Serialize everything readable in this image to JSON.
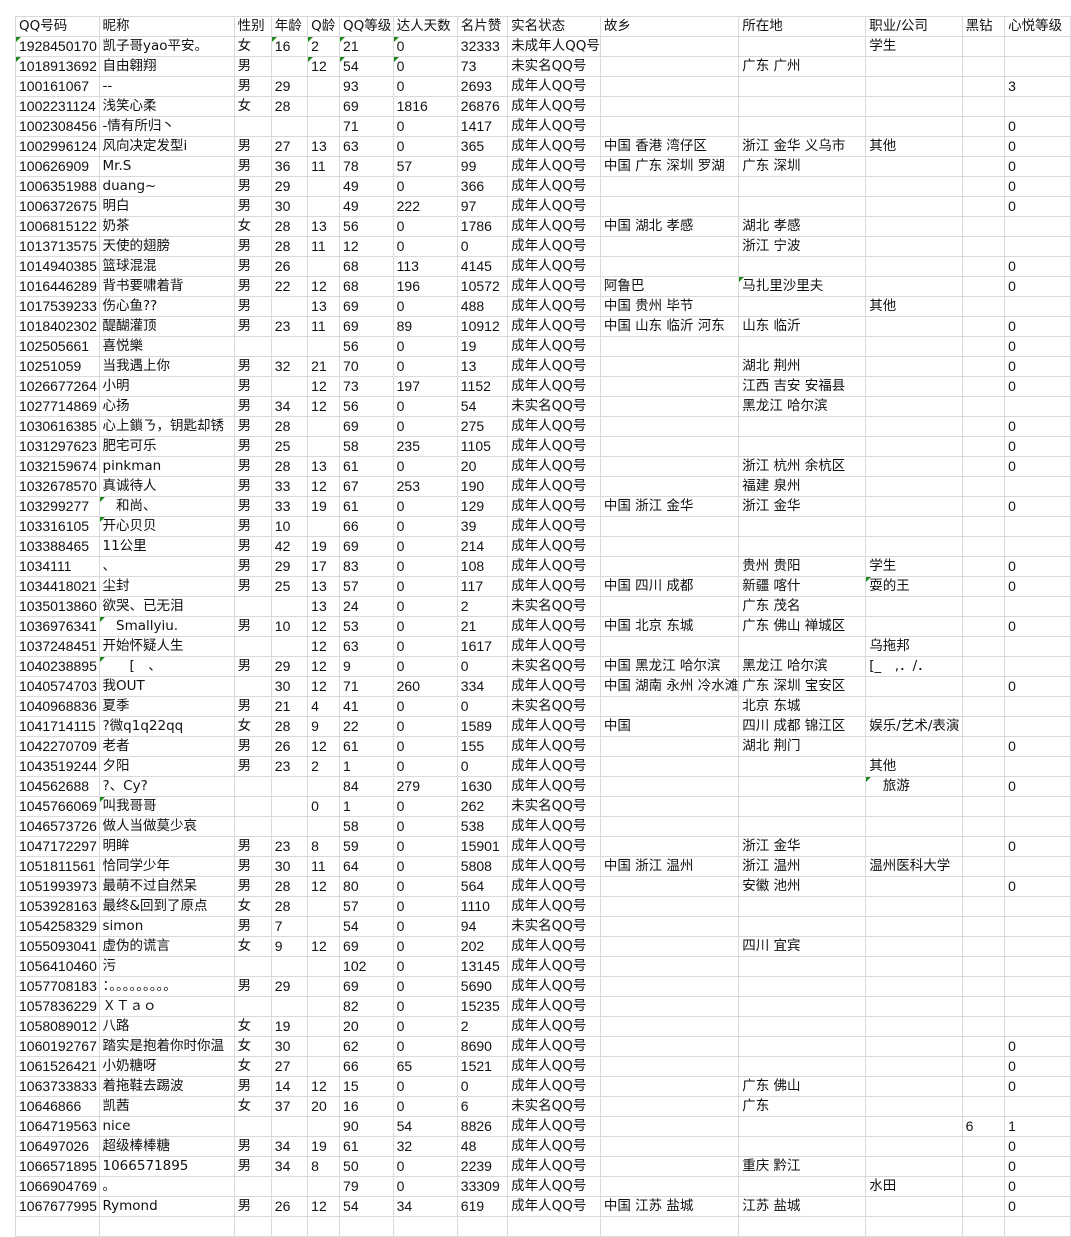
{
  "headers": [
    "QQ号码",
    "昵称",
    "性别",
    "年龄",
    "Q龄",
    "QQ等级",
    "达人天数",
    "名片赞",
    "实名状态",
    "故乡",
    "所在地",
    "职业/公司",
    "黑钻",
    "心悦等级"
  ],
  "rows": [
    [
      "1928450170",
      "凯子哥yao平安。",
      "女",
      "16",
      "2",
      "21",
      "0",
      "32333",
      "未成年人QQ号",
      "",
      "",
      "学生",
      "",
      ""
    ],
    [
      "1018913692",
      "自由翱翔",
      "男",
      "",
      "12",
      "54",
      "0",
      "73",
      "未实名QQ号",
      "",
      "广东 广州",
      "",
      "",
      ""
    ],
    [
      "100161067",
      "--",
      "男",
      "29",
      "",
      "93",
      "0",
      "2693",
      "成年人QQ号",
      "",
      "",
      "",
      "",
      "3"
    ],
    [
      "1002231124",
      "浅笑心柔",
      "女",
      "28",
      "",
      "69",
      "1816",
      "26876",
      "成年人QQ号",
      "",
      "",
      "",
      "",
      ""
    ],
    [
      "1002308456",
      "-情有所归丶",
      "",
      "",
      "",
      "71",
      "0",
      "1417",
      "成年人QQ号",
      "",
      "",
      "",
      "",
      "0"
    ],
    [
      "1002996124",
      "风向决定发型i",
      "男",
      "27",
      "13",
      "63",
      "0",
      "365",
      "成年人QQ号",
      "中国 香港 湾仔区",
      "浙江 金华 义乌市",
      "其他",
      "",
      "0"
    ],
    [
      "100626909",
      "Mr.S",
      "男",
      "36",
      "11",
      "78",
      "57",
      "99",
      "成年人QQ号",
      "中国 广东 深圳 罗湖",
      "广东 深圳",
      "",
      "",
      "0"
    ],
    [
      "1006351988",
      "duang~",
      "男",
      "29",
      "",
      "49",
      "0",
      "366",
      "成年人QQ号",
      "",
      "",
      "",
      "",
      "0"
    ],
    [
      "1006372675",
      "明白",
      "男",
      "30",
      "",
      "49",
      "222",
      "97",
      "成年人QQ号",
      "",
      "",
      "",
      "",
      "0"
    ],
    [
      "1006815122",
      "奶茶",
      "女",
      "28",
      "13",
      "56",
      "0",
      "1786",
      "成年人QQ号",
      "中国 湖北 孝感",
      "湖北 孝感",
      "",
      "",
      ""
    ],
    [
      "1013713575",
      "天使的翅膀",
      "男",
      "28",
      "11",
      "12",
      "0",
      "0",
      "成年人QQ号",
      "",
      "浙江 宁波",
      "",
      "",
      ""
    ],
    [
      "1014940385",
      "篮球混混",
      "男",
      "26",
      "",
      "68",
      "113",
      "4145",
      "成年人QQ号",
      "",
      "",
      "",
      "",
      "0"
    ],
    [
      "1016446289",
      "背书要啸着背",
      "男",
      "22",
      "12",
      "68",
      "196",
      "10572",
      "成年人QQ号",
      "阿鲁巴",
      "马扎里沙里夫",
      "",
      "",
      "0"
    ],
    [
      "1017539233",
      "伤心鱼??",
      "男",
      "",
      "13",
      "69",
      "0",
      "488",
      "成年人QQ号",
      "中国 贵州 毕节",
      "",
      "其他",
      "",
      ""
    ],
    [
      "1018402302",
      "醍醐灌顶",
      "男",
      "23",
      "11",
      "69",
      "89",
      "10912",
      "成年人QQ号",
      "中国 山东 临沂 河东",
      "山东 临沂",
      "",
      "",
      "0"
    ],
    [
      "102505661",
      "喜悦樂",
      "",
      "",
      "",
      "56",
      "0",
      "19",
      "成年人QQ号",
      "",
      "",
      "",
      "",
      "0"
    ],
    [
      "10251059",
      "当我遇上你",
      "男",
      "32",
      "21",
      "70",
      "0",
      "13",
      "成年人QQ号",
      "",
      "湖北 荆州",
      "",
      "",
      "0"
    ],
    [
      "1026677264",
      "小明",
      "男",
      "",
      "12",
      "73",
      "197",
      "1152",
      "成年人QQ号",
      "",
      "江西 吉安 安福县",
      "",
      "",
      "0"
    ],
    [
      "1027714869",
      "心扬",
      "男",
      "34",
      "12",
      "56",
      "0",
      "54",
      "未实名QQ号",
      "",
      "黑龙江 哈尔滨",
      "",
      "",
      ""
    ],
    [
      "1030616385",
      "心上鎖ㄋ，钥匙却锈",
      "男",
      "28",
      "",
      "69",
      "0",
      "275",
      "成年人QQ号",
      "",
      "",
      "",
      "",
      "0"
    ],
    [
      "1031297623",
      "肥宅可乐",
      "男",
      "25",
      "",
      "58",
      "235",
      "1105",
      "成年人QQ号",
      "",
      "",
      "",
      "",
      "0"
    ],
    [
      "1032159674",
      "pinkman",
      "男",
      "28",
      "13",
      "61",
      "0",
      "20",
      "成年人QQ号",
      "",
      "浙江 杭州 余杭区",
      "",
      "",
      "0"
    ],
    [
      "1032678570",
      "真诚待人",
      "男",
      "33",
      "12",
      "67",
      "253",
      "190",
      "成年人QQ号",
      "",
      "福建 泉州",
      "",
      "",
      ""
    ],
    [
      "103299277",
      "　和尚、",
      "男",
      "33",
      "19",
      "61",
      "0",
      "129",
      "成年人QQ号",
      "中国 浙江 金华",
      "浙江 金华",
      "",
      "",
      "0"
    ],
    [
      "103316105",
      "开心贝贝",
      "男",
      "10",
      "",
      "66",
      "0",
      "39",
      "成年人QQ号",
      "",
      "",
      "",
      "",
      ""
    ],
    [
      "103388465",
      "11公里",
      "男",
      "42",
      "19",
      "69",
      "0",
      "214",
      "成年人QQ号",
      "",
      "",
      "",
      "",
      ""
    ],
    [
      "1034111",
      "、",
      "男",
      "29",
      "17",
      "83",
      "0",
      "108",
      "成年人QQ号",
      "",
      "贵州 贵阳",
      "学生",
      "",
      "0"
    ],
    [
      "1034418021",
      "尘封",
      "男",
      "25",
      "13",
      "57",
      "0",
      "117",
      "成年人QQ号",
      "中国 四川 成都",
      "新疆 喀什",
      "耍的王",
      "",
      "0"
    ],
    [
      "1035013860",
      "欲哭、已无泪",
      "",
      "",
      "13",
      "24",
      "0",
      "2",
      "未实名QQ号",
      "",
      "广东 茂名",
      "",
      "",
      ""
    ],
    [
      "1036976341",
      "　Smallyiu.",
      "男",
      "10",
      "12",
      "53",
      "0",
      "21",
      "成年人QQ号",
      "中国 北京 东城",
      "广东 佛山 禅城区",
      "",
      "",
      "0"
    ],
    [
      "1037248451",
      "开始怀疑人生",
      "",
      "",
      "12",
      "63",
      "0",
      "1617",
      "成年人QQ号",
      "",
      "",
      "乌拖邦",
      "",
      ""
    ],
    [
      "1040238895",
      "　　[　、",
      "男",
      "29",
      "12",
      "9",
      "0",
      "0",
      "未实名QQ号",
      "中国 黑龙江 哈尔滨",
      "黑龙江 哈尔滨",
      "[_　,．/．",
      "",
      ""
    ],
    [
      "1040574703",
      "我OUT",
      "",
      "30",
      "12",
      "71",
      "260",
      "334",
      "成年人QQ号",
      "中国 湖南 永州 冷水滩",
      "广东 深圳 宝安区",
      "",
      "",
      "0"
    ],
    [
      "1040968836",
      "夏季",
      "男",
      "21",
      "4",
      "41",
      "0",
      "0",
      "未实名QQ号",
      "",
      "北京 东城",
      "",
      "",
      ""
    ],
    [
      "1041714115",
      "?微q1q22qq",
      "女",
      "28",
      "9",
      "22",
      "0",
      "1589",
      "成年人QQ号",
      "中国",
      "四川 成都 锦江区",
      "娱乐/艺术/表演",
      "",
      ""
    ],
    [
      "1042270709",
      "老者",
      "男",
      "26",
      "12",
      "61",
      "0",
      "155",
      "成年人QQ号",
      "",
      "湖北 荆门",
      "",
      "",
      "0"
    ],
    [
      "1043519244",
      "夕阳",
      "男",
      "23",
      "2",
      "1",
      "0",
      "0",
      "成年人QQ号",
      "",
      "",
      "其他",
      "",
      ""
    ],
    [
      "104562688",
      "?、Cy?",
      "",
      "",
      "",
      "84",
      "279",
      "1630",
      "成年人QQ号",
      "",
      "",
      "　旅游",
      "",
      "0"
    ],
    [
      "1045766069",
      "叫我哥哥",
      "",
      "",
      "0",
      "1",
      "0",
      "262",
      "未实名QQ号",
      "",
      "",
      "",
      "",
      ""
    ],
    [
      "1046573726",
      "做人当做莫少哀",
      "",
      "",
      "",
      "58",
      "0",
      "538",
      "成年人QQ号",
      "",
      "",
      "",
      "",
      ""
    ],
    [
      "1047172297",
      "明眸",
      "男",
      "23",
      "8",
      "59",
      "0",
      "15901",
      "成年人QQ号",
      "",
      "浙江 金华",
      "",
      "",
      "0"
    ],
    [
      "1051811561",
      "恰同学少年",
      "男",
      "30",
      "11",
      "64",
      "0",
      "5808",
      "成年人QQ号",
      "中国 浙江 温州",
      "浙江 温州",
      "温州医科大学",
      "",
      ""
    ],
    [
      "1051993973",
      "最萌不过自然呆",
      "男",
      "28",
      "12",
      "80",
      "0",
      "564",
      "成年人QQ号",
      "",
      "安徽 池州",
      "",
      "",
      "0"
    ],
    [
      "1053928163",
      "最终&回到了原点",
      "女",
      "28",
      "",
      "57",
      "0",
      "1110",
      "成年人QQ号",
      "",
      "",
      "",
      "",
      ""
    ],
    [
      "1054258329",
      "simon",
      "男",
      "7",
      "",
      "54",
      "0",
      "94",
      "未实名QQ号",
      "",
      "",
      "",
      "",
      ""
    ],
    [
      "1055093041",
      "虚伪的谎言",
      "女",
      "9",
      "12",
      "69",
      "0",
      "202",
      "成年人QQ号",
      "",
      "四川 宜宾",
      "",
      "",
      ""
    ],
    [
      "1056410460",
      "污",
      "",
      "",
      "",
      "102",
      "0",
      "13145",
      "成年人QQ号",
      "",
      "",
      "",
      "",
      ""
    ],
    [
      "1057708183",
      "：。。。。。。。。。",
      "男",
      "29",
      "",
      "69",
      "0",
      "5690",
      "成年人QQ号",
      "",
      "",
      "",
      "",
      ""
    ],
    [
      "1057836229",
      "ＸＴａｏ",
      "",
      "",
      "",
      "82",
      "0",
      "15235",
      "成年人QQ号",
      "",
      "",
      "",
      "",
      ""
    ],
    [
      "1058089012",
      "八路",
      "女",
      "19",
      "",
      "20",
      "0",
      "2",
      "成年人QQ号",
      "",
      "",
      "",
      "",
      ""
    ],
    [
      "1060192767",
      "踏实是抱着你时你温",
      "女",
      "30",
      "",
      "62",
      "0",
      "8690",
      "成年人QQ号",
      "",
      "",
      "",
      "",
      "0"
    ],
    [
      "1061526421",
      "小奶糖呀",
      "女",
      "27",
      "",
      "66",
      "65",
      "1521",
      "成年人QQ号",
      "",
      "",
      "",
      "",
      "0"
    ],
    [
      "1063733833",
      "着拖鞋去踢波",
      "男",
      "14",
      "12",
      "15",
      "0",
      "0",
      "成年人QQ号",
      "",
      "广东 佛山",
      "",
      "",
      "0"
    ],
    [
      "10646866",
      "凯茜",
      "女",
      "37",
      "20",
      "16",
      "0",
      "6",
      "未实名QQ号",
      "",
      "广东",
      "",
      "",
      ""
    ],
    [
      "1064719563",
      "nice",
      "",
      "",
      "",
      "90",
      "54",
      "8826",
      "成年人QQ号",
      "",
      "",
      "",
      "6",
      "1"
    ],
    [
      "106497026",
      "超级棒棒糖",
      "男",
      "34",
      "19",
      "61",
      "32",
      "48",
      "成年人QQ号",
      "",
      "",
      "",
      "",
      "0"
    ],
    [
      "1066571895",
      "1066571895",
      "男",
      "34",
      "8",
      "50",
      "0",
      "2239",
      "成年人QQ号",
      "",
      "重庆 黔江",
      "",
      "",
      "0"
    ],
    [
      "1066904769",
      "。",
      "",
      "",
      "",
      "79",
      "0",
      "33309",
      "成年人QQ号",
      "",
      "",
      "水田",
      "",
      "0"
    ],
    [
      "1067677995",
      "Rymond",
      "男",
      "26",
      "12",
      "54",
      "34",
      "619",
      "成年人QQ号",
      "中国 江苏 盐城",
      "江苏 盐城",
      "",
      "",
      "0"
    ]
  ]
}
